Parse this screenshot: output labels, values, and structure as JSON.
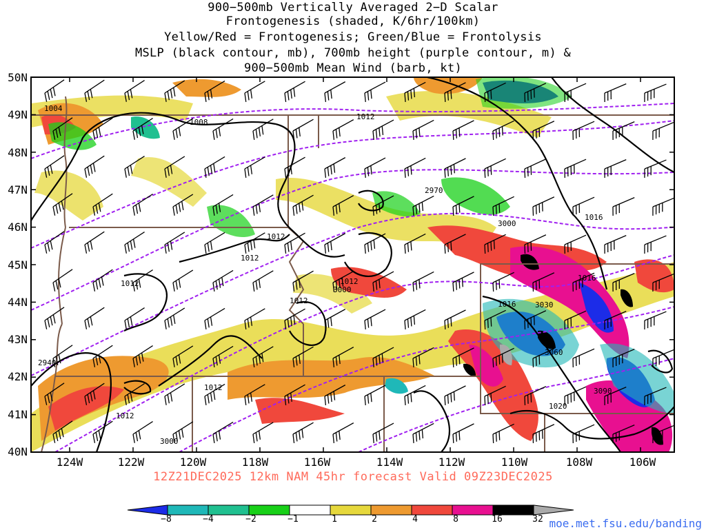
{
  "title_lines": [
    "900−500mb Vertically Averaged 2−D Scalar",
    "Frontogenesis (shaded, K/6hr/100km)",
    "Yellow/Red = Frontogenesis;  Green/Blue = Frontolysis",
    "MSLP (black contour, mb), 700mb height (purple contour, m) &",
    "900−500mb Mean Wind (barb, kt)"
  ],
  "map": {
    "lat_labels": [
      "50N",
      "49N",
      "48N",
      "47N",
      "46N",
      "45N",
      "44N",
      "43N",
      "42N",
      "41N",
      "40N"
    ],
    "lon_labels": [
      "124W",
      "122W",
      "120W",
      "118W",
      "116W",
      "114W",
      "112W",
      "110W",
      "108W",
      "106W"
    ],
    "mslp_labels": [
      "1004",
      "1008",
      "1012",
      "1012",
      "1012",
      "1012",
      "1012",
      "1012",
      "1012",
      "1012",
      "1016",
      "1016",
      "1016",
      "1020"
    ],
    "height_labels": [
      "2970",
      "3000",
      "3000",
      "3000",
      "3030",
      "3060",
      "3090",
      "2940"
    ],
    "colors": {
      "mslp": "#000000",
      "height": "#a020f0",
      "borders": "#7a5a4a",
      "barbs": "#000000"
    }
  },
  "caption": "12Z21DEC2025 12km NAM 45hr forecast Valid 09Z23DEC2025",
  "colorbar": {
    "labels": [
      "−8",
      "−4",
      "−2",
      "−1",
      "1",
      "2",
      "4",
      "8",
      "16",
      "32"
    ],
    "colors": [
      "#1c2ce8",
      "#1fb8b8",
      "#20c090",
      "#18d018",
      "#ffffff",
      "#e6d83c",
      "#ee9a30",
      "#f0483c",
      "#e81090",
      "#000000",
      "#aaaaaa"
    ]
  },
  "site": "moe.met.fsu.edu/banding"
}
